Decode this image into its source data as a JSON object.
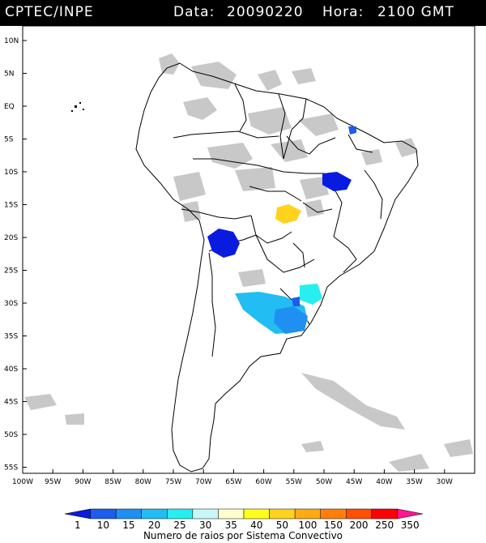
{
  "header": {
    "source": "CPTEC/INPE",
    "date_label": "Data:",
    "date_value": "20090220",
    "hour_label": "Hora:",
    "hour_value": "2100 GMT"
  },
  "map": {
    "lat_ticks": [
      "10N",
      "5N",
      "EQ",
      "5S",
      "10S",
      "15S",
      "20S",
      "25S",
      "30S",
      "35S",
      "40S",
      "45S",
      "50S",
      "55S"
    ],
    "lon_ticks": [
      "100W",
      "95W",
      "90W",
      "85W",
      "80W",
      "75W",
      "70W",
      "65W",
      "60W",
      "55W",
      "50W",
      "45W",
      "40W",
      "35W",
      "30W"
    ],
    "extent": {
      "lon_min": -100,
      "lon_max": -28,
      "lat_min": -56,
      "lat_max": 13
    }
  },
  "legend": {
    "labels": [
      "1",
      "10",
      "15",
      "20",
      "25",
      "30",
      "35",
      "40",
      "50",
      "100",
      "150",
      "200",
      "250",
      "350"
    ],
    "colors": [
      "#0a1be0",
      "#1e5cf0",
      "#1f8ff2",
      "#22bdf2",
      "#28eef0",
      "#c9f7f7",
      "#ffffcc",
      "#ffff1e",
      "#ffd21e",
      "#ffaa14",
      "#ff7f0a",
      "#ff5000",
      "#ff0000",
      "#ff1493"
    ],
    "title": "Numero de raios por Sistema Convectivo"
  }
}
